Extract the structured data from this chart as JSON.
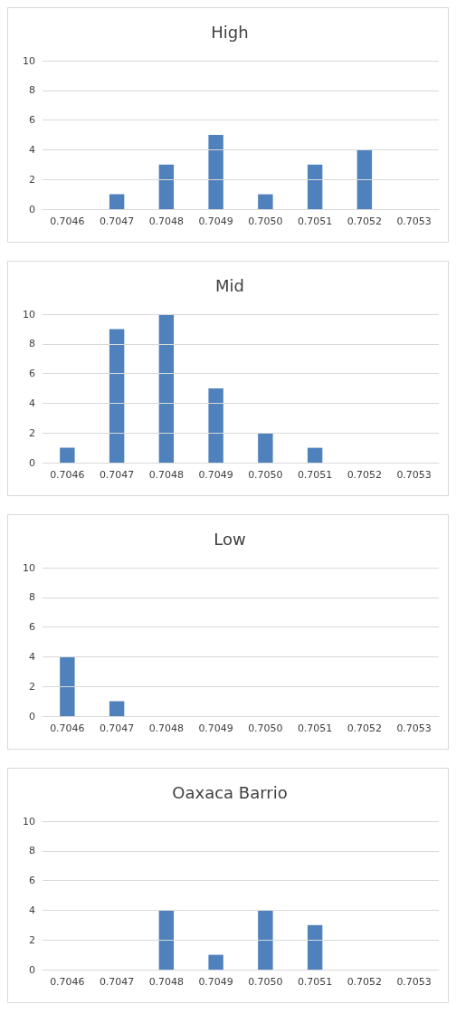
{
  "chart_data": [
    {
      "type": "bar",
      "title": "High",
      "categories": [
        "0.7046",
        "0.7047",
        "0.7048",
        "0.7049",
        "0.7050",
        "0.7051",
        "0.7052",
        "0.7053"
      ],
      "values": [
        0,
        1,
        3,
        5,
        1,
        3,
        4,
        0
      ],
      "color": "#4f81bd",
      "ylim": [
        0,
        10
      ],
      "yticks": [
        0,
        2,
        4,
        6,
        8,
        10
      ],
      "grid": "y"
    },
    {
      "type": "bar",
      "title": "Mid",
      "categories": [
        "0.7046",
        "0.7047",
        "0.7048",
        "0.7049",
        "0.7050",
        "0.7051",
        "0.7052",
        "0.7053"
      ],
      "values": [
        1,
        9,
        10,
        5,
        2,
        1,
        0,
        0
      ],
      "color": "#4f81bd",
      "ylim": [
        0,
        10
      ],
      "yticks": [
        0,
        2,
        4,
        6,
        8,
        10
      ],
      "grid": "y"
    },
    {
      "type": "bar",
      "title": "Low",
      "categories": [
        "0.7046",
        "0.7047",
        "0.7048",
        "0.7049",
        "0.7050",
        "0.7051",
        "0.7052",
        "0.7053"
      ],
      "values": [
        4,
        1,
        0,
        0,
        0,
        0,
        0,
        0
      ],
      "color": "#4f81bd",
      "ylim": [
        0,
        10
      ],
      "yticks": [
        0,
        2,
        4,
        6,
        8,
        10
      ],
      "grid": "y"
    },
    {
      "type": "bar",
      "title": "Oaxaca Barrio",
      "categories": [
        "0.7046",
        "0.7047",
        "0.7048",
        "0.7049",
        "0.7050",
        "0.7051",
        "0.7052",
        "0.7053"
      ],
      "values": [
        0,
        0,
        4,
        1,
        4,
        3,
        0,
        0
      ],
      "color": "#4f81bd",
      "ylim": [
        0,
        10
      ],
      "yticks": [
        0,
        2,
        4,
        6,
        8,
        10
      ],
      "grid": "y"
    }
  ]
}
